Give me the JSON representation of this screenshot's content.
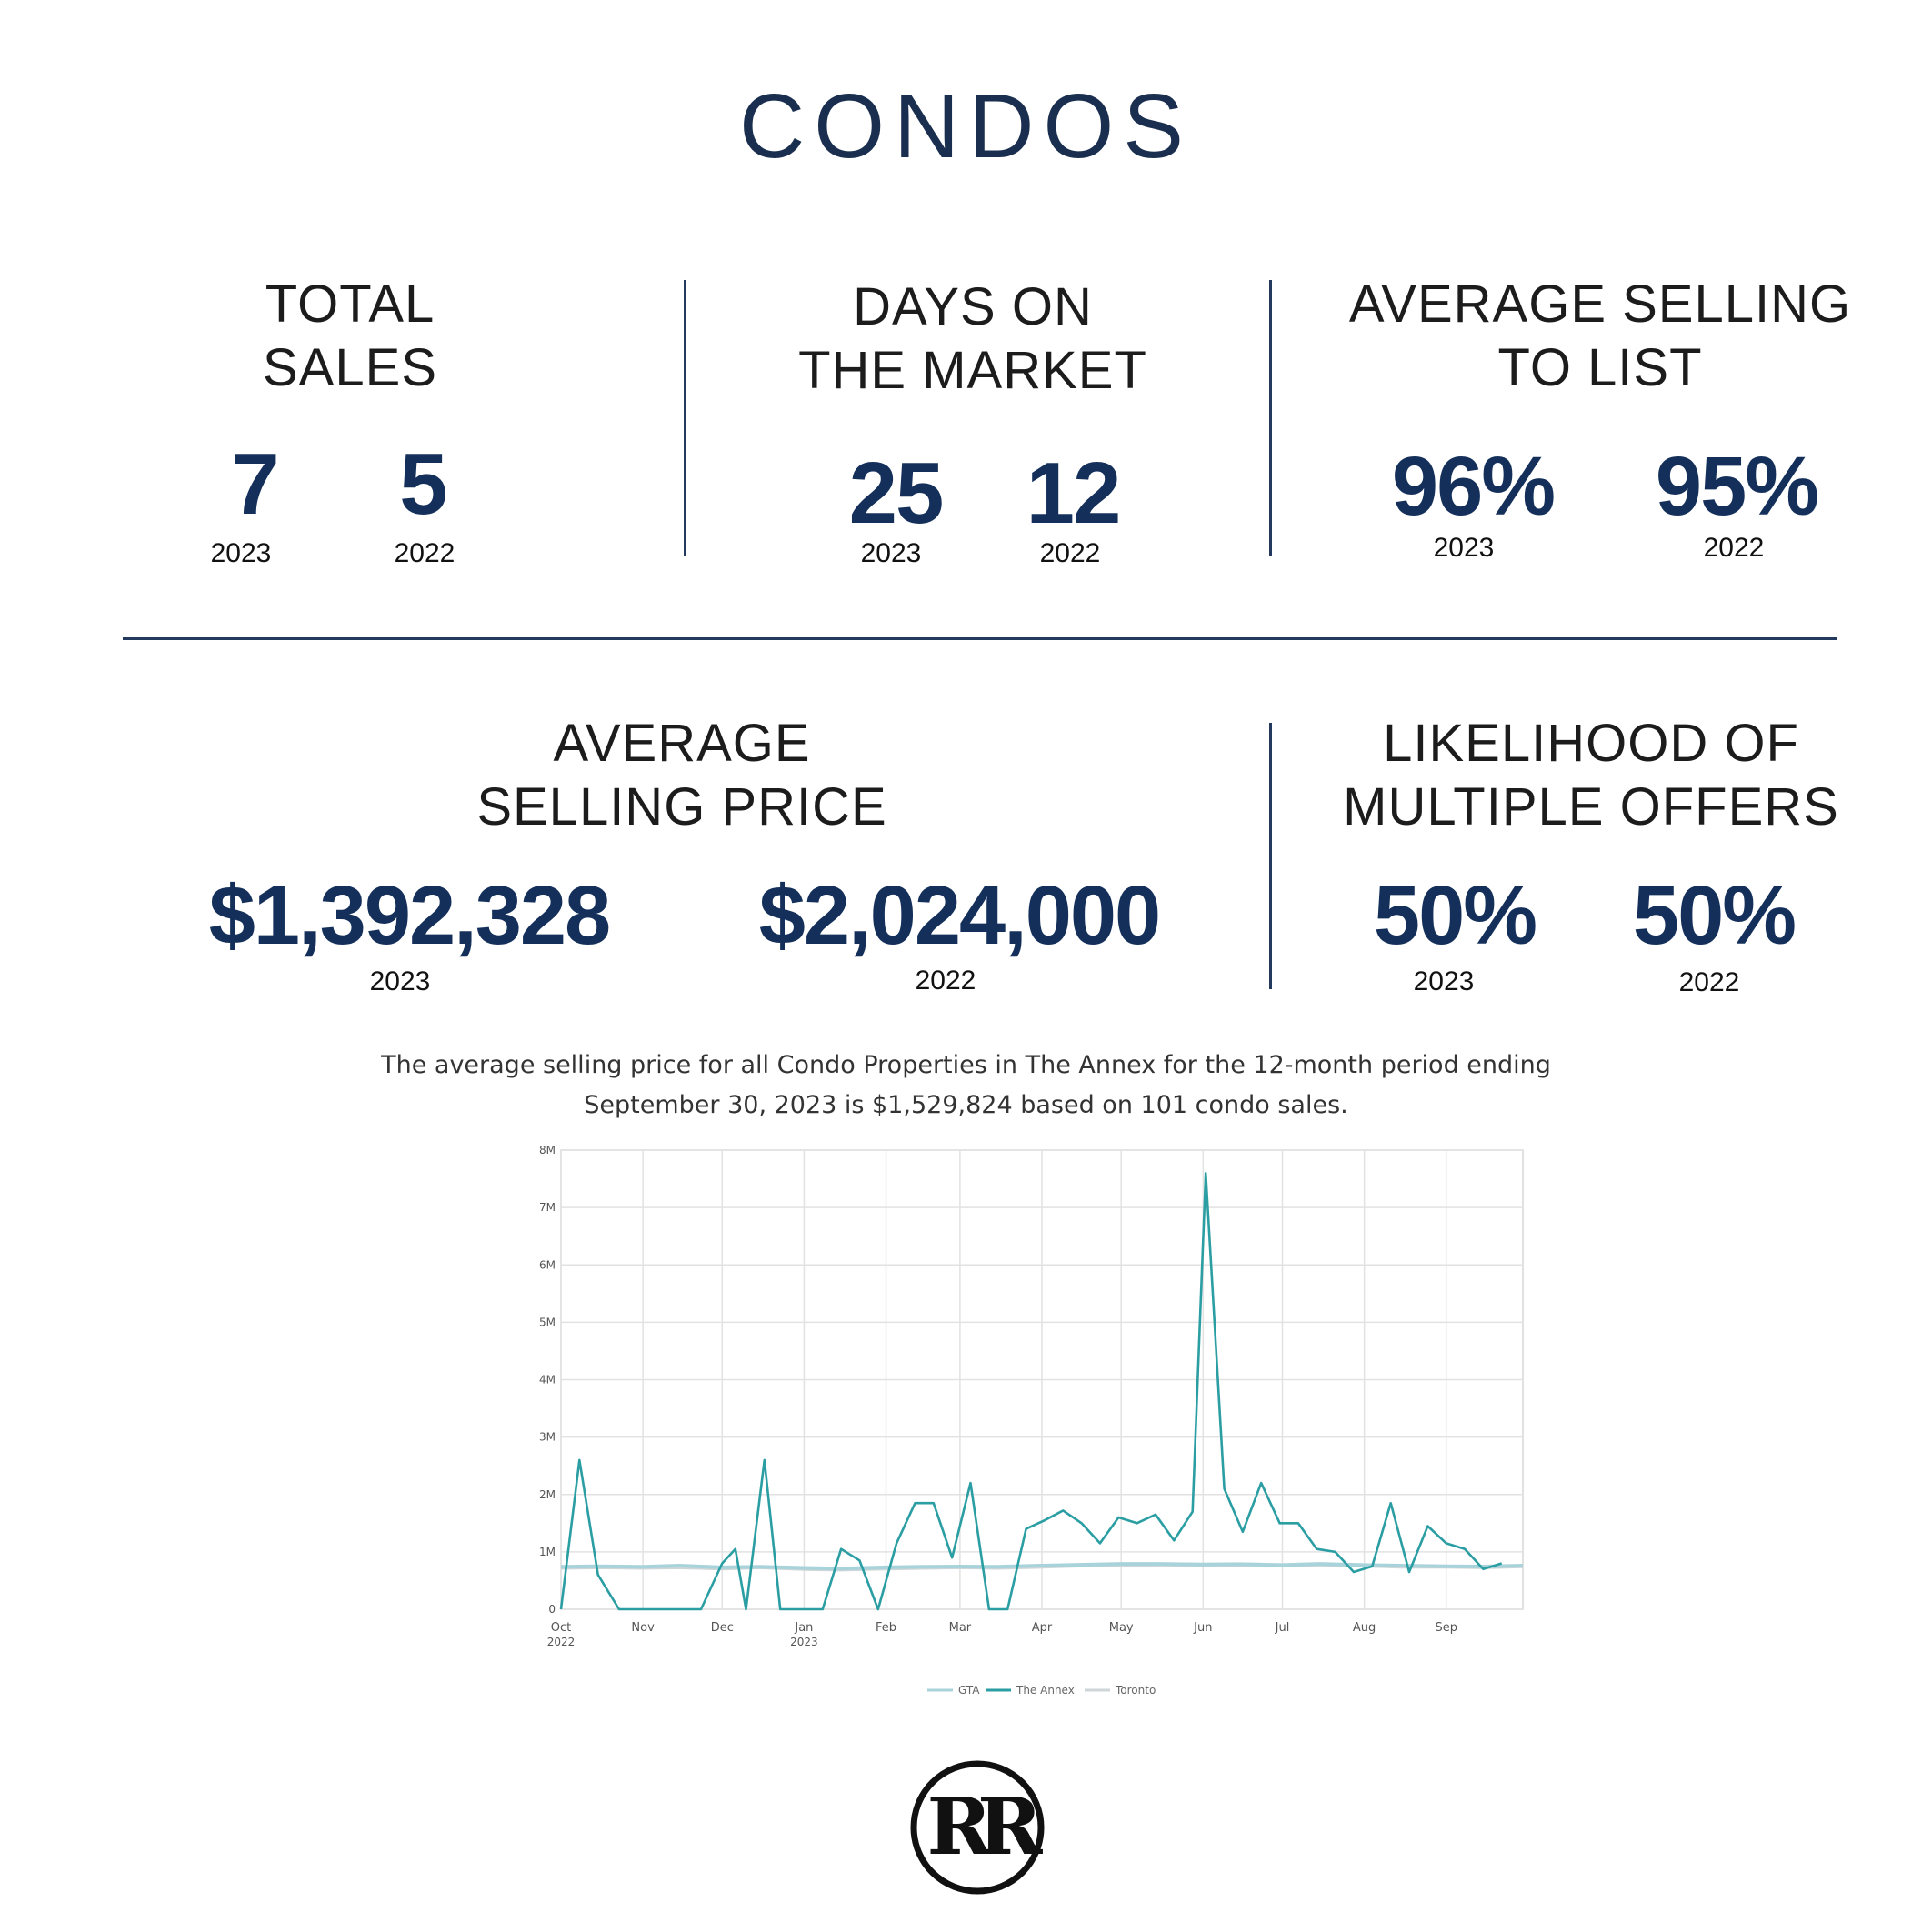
{
  "title": "CONDOS",
  "stats": {
    "total_sales": {
      "head1": "TOTAL",
      "head2": "SALES",
      "v2023": "7",
      "v2022": "5",
      "y2023": "2023",
      "y2022": "2022"
    },
    "days_on_market": {
      "head1": "DAYS ON",
      "head2": "THE MARKET",
      "v2023": "25",
      "v2022": "12",
      "y2023": "2023",
      "y2022": "2022"
    },
    "avg_selling_to_list": {
      "head1": "AVERAGE SELLING",
      "head2": "TO LIST",
      "v2023": "96%",
      "v2022": "95%",
      "y2023": "2023",
      "y2022": "2022"
    },
    "avg_selling_price": {
      "head1": "AVERAGE",
      "head2": "SELLING PRICE",
      "v2023": "$1,392,328",
      "v2022": "$2,024,000",
      "y2023": "2023",
      "y2022": "2022"
    },
    "multiple_offers": {
      "head1": "LIKELIHOOD OF",
      "head2": "MULTIPLE OFFERS",
      "v2023": "50%",
      "v2022": "50%",
      "y2023": "2023",
      "y2022": "2022"
    }
  },
  "caption": {
    "line1": "The average selling price for all Condo Properties in The Annex for the 12-month period ending",
    "line2": "September 30, 2023 is $1,529,824 based on 101 condo sales."
  },
  "chart_data": {
    "type": "line",
    "ylim": [
      0,
      8000000
    ],
    "y_ticks": [
      {
        "value": 0,
        "label": "0"
      },
      {
        "value": 1000000,
        "label": "1M"
      },
      {
        "value": 2000000,
        "label": "2M"
      },
      {
        "value": 3000000,
        "label": "3M"
      },
      {
        "value": 4000000,
        "label": "4M"
      },
      {
        "value": 5000000,
        "label": "5M"
      },
      {
        "value": 6000000,
        "label": "6M"
      },
      {
        "value": 7000000,
        "label": "7M"
      },
      {
        "value": 8000000,
        "label": "8M"
      }
    ],
    "x_range": [
      "2022-10-01",
      "2023-09-30"
    ],
    "x_ticks": [
      {
        "date": "2022-10-01",
        "label": "Oct",
        "sub": "2022"
      },
      {
        "date": "2022-11-01",
        "label": "Nov",
        "sub": ""
      },
      {
        "date": "2022-12-01",
        "label": "Dec",
        "sub": ""
      },
      {
        "date": "2023-01-01",
        "label": "Jan",
        "sub": "2023"
      },
      {
        "date": "2023-02-01",
        "label": "Feb",
        "sub": ""
      },
      {
        "date": "2023-03-01",
        "label": "Mar",
        "sub": ""
      },
      {
        "date": "2023-04-01",
        "label": "Apr",
        "sub": ""
      },
      {
        "date": "2023-05-01",
        "label": "May",
        "sub": ""
      },
      {
        "date": "2023-06-01",
        "label": "Jun",
        "sub": ""
      },
      {
        "date": "2023-07-01",
        "label": "Jul",
        "sub": ""
      },
      {
        "date": "2023-08-01",
        "label": "Aug",
        "sub": ""
      },
      {
        "date": "2023-09-01",
        "label": "Sep",
        "sub": ""
      }
    ],
    "grid": true,
    "legend_position": "bottom-center",
    "series": [
      {
        "name": "GTA",
        "color": "#a9d3da",
        "points": [
          [
            "2022-10-01",
            740000
          ],
          [
            "2022-10-15",
            750000
          ],
          [
            "2022-11-01",
            740000
          ],
          [
            "2022-11-15",
            760000
          ],
          [
            "2022-12-01",
            730000
          ],
          [
            "2022-12-15",
            740000
          ],
          [
            "2023-01-01",
            720000
          ],
          [
            "2023-01-15",
            710000
          ],
          [
            "2023-02-01",
            730000
          ],
          [
            "2023-02-15",
            740000
          ],
          [
            "2023-03-01",
            745000
          ],
          [
            "2023-03-15",
            740000
          ],
          [
            "2023-04-01",
            760000
          ],
          [
            "2023-04-15",
            775000
          ],
          [
            "2023-05-01",
            790000
          ],
          [
            "2023-05-15",
            790000
          ],
          [
            "2023-06-01",
            780000
          ],
          [
            "2023-06-15",
            785000
          ],
          [
            "2023-07-01",
            770000
          ],
          [
            "2023-07-15",
            790000
          ],
          [
            "2023-08-01",
            770000
          ],
          [
            "2023-08-15",
            760000
          ],
          [
            "2023-09-01",
            750000
          ],
          [
            "2023-09-15",
            745000
          ],
          [
            "2023-09-30",
            760000
          ]
        ]
      },
      {
        "name": "The Annex",
        "color": "#2b9ea3",
        "points": [
          [
            "2022-10-01",
            0
          ],
          [
            "2022-10-08",
            2600000
          ],
          [
            "2022-10-15",
            600000
          ],
          [
            "2022-10-23",
            0
          ],
          [
            "2022-11-01",
            0
          ],
          [
            "2022-11-08",
            0
          ],
          [
            "2022-11-15",
            0
          ],
          [
            "2022-11-23",
            0
          ],
          [
            "2022-12-01",
            800000
          ],
          [
            "2022-12-06",
            1050000
          ],
          [
            "2022-12-10",
            0
          ],
          [
            "2022-12-17",
            2600000
          ],
          [
            "2022-12-23",
            0
          ],
          [
            "2023-01-01",
            0
          ],
          [
            "2023-01-08",
            0
          ],
          [
            "2023-01-15",
            1050000
          ],
          [
            "2023-01-22",
            850000
          ],
          [
            "2023-01-29",
            0
          ],
          [
            "2023-02-05",
            1150000
          ],
          [
            "2023-02-12",
            1850000
          ],
          [
            "2023-02-19",
            1850000
          ],
          [
            "2023-02-26",
            900000
          ],
          [
            "2023-03-05",
            2200000
          ],
          [
            "2023-03-12",
            0
          ],
          [
            "2023-03-19",
            0
          ],
          [
            "2023-03-26",
            1400000
          ],
          [
            "2023-04-02",
            1550000
          ],
          [
            "2023-04-09",
            1720000
          ],
          [
            "2023-04-16",
            1500000
          ],
          [
            "2023-04-23",
            1150000
          ],
          [
            "2023-04-30",
            1600000
          ],
          [
            "2023-05-07",
            1500000
          ],
          [
            "2023-05-14",
            1650000
          ],
          [
            "2023-05-21",
            1200000
          ],
          [
            "2023-05-28",
            1700000
          ],
          [
            "2023-06-02",
            7600000
          ],
          [
            "2023-06-09",
            2100000
          ],
          [
            "2023-06-16",
            1350000
          ],
          [
            "2023-06-23",
            2200000
          ],
          [
            "2023-06-30",
            1500000
          ],
          [
            "2023-07-07",
            1500000
          ],
          [
            "2023-07-14",
            1050000
          ],
          [
            "2023-07-21",
            1000000
          ],
          [
            "2023-07-28",
            650000
          ],
          [
            "2023-08-04",
            750000
          ],
          [
            "2023-08-11",
            1850000
          ],
          [
            "2023-08-18",
            650000
          ],
          [
            "2023-08-25",
            1450000
          ],
          [
            "2023-09-01",
            1150000
          ],
          [
            "2023-09-08",
            1050000
          ],
          [
            "2023-09-15",
            700000
          ],
          [
            "2023-09-22",
            800000
          ]
        ]
      },
      {
        "name": "Toronto",
        "color": "#cfd6d8",
        "points": [
          [
            "2022-10-01",
            720000
          ],
          [
            "2022-10-15",
            730000
          ],
          [
            "2022-11-01",
            720000
          ],
          [
            "2022-11-15",
            730000
          ],
          [
            "2022-12-01",
            710000
          ],
          [
            "2022-12-15",
            730000
          ],
          [
            "2023-01-01",
            700000
          ],
          [
            "2023-01-15",
            690000
          ],
          [
            "2023-02-01",
            710000
          ],
          [
            "2023-02-15",
            720000
          ],
          [
            "2023-03-01",
            730000
          ],
          [
            "2023-03-15",
            720000
          ],
          [
            "2023-04-01",
            740000
          ],
          [
            "2023-04-15",
            760000
          ],
          [
            "2023-05-01",
            770000
          ],
          [
            "2023-05-15",
            780000
          ],
          [
            "2023-06-01",
            770000
          ],
          [
            "2023-06-15",
            775000
          ],
          [
            "2023-07-01",
            760000
          ],
          [
            "2023-07-15",
            780000
          ],
          [
            "2023-08-01",
            760000
          ],
          [
            "2023-08-15",
            740000
          ],
          [
            "2023-09-01",
            740000
          ],
          [
            "2023-09-15",
            730000
          ],
          [
            "2023-09-30",
            750000
          ]
        ]
      }
    ]
  },
  "logo": {
    "monogram": "RR"
  },
  "colors": {
    "navy": "#14305a",
    "divider": "#233a5e",
    "annex": "#2b9ea3"
  }
}
